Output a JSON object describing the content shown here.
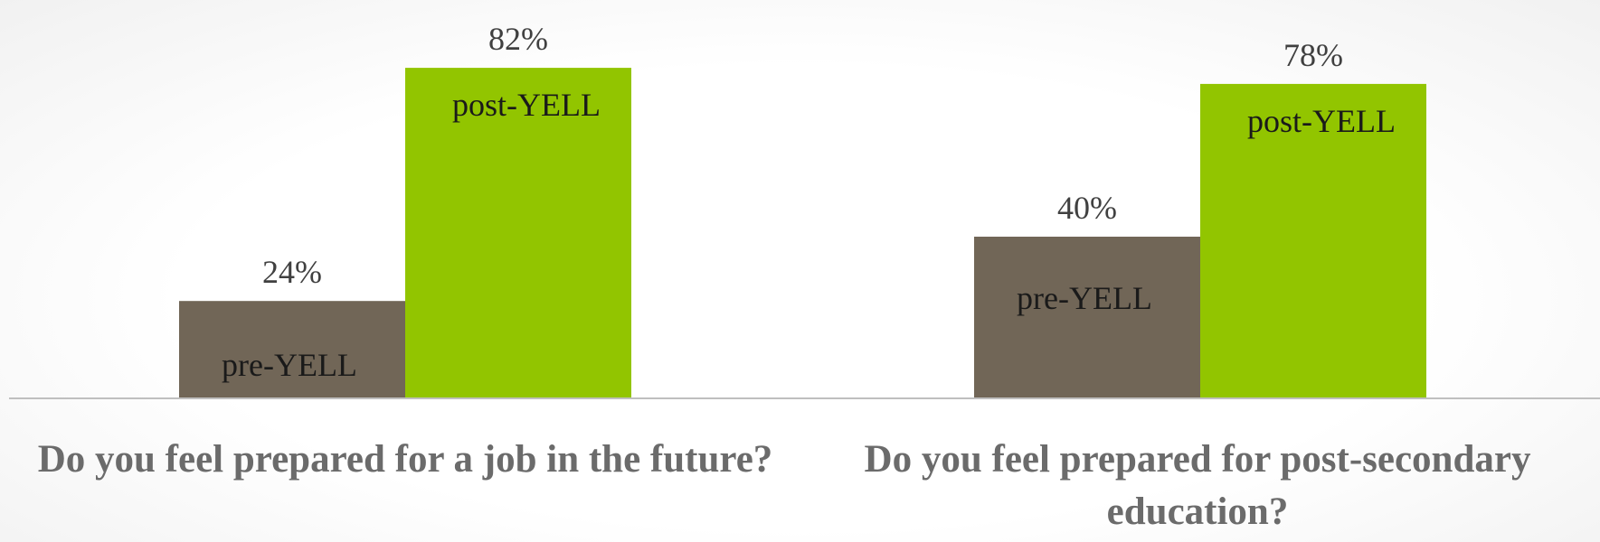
{
  "chart_data": {
    "type": "bar",
    "categories": [
      "Do you feel prepared for a job in the future?",
      "Do you feel prepared for post-secondary education?"
    ],
    "series": [
      {
        "name": "pre-YELL",
        "values": [
          24,
          40
        ]
      },
      {
        "name": "post-YELL",
        "values": [
          82,
          78
        ]
      }
    ],
    "value_labels": [
      [
        "24%",
        "40%"
      ],
      [
        "82%",
        "78%"
      ]
    ],
    "title": "",
    "xlabel": "",
    "ylabel": "",
    "ylim": [
      0,
      100
    ],
    "grid": false,
    "legend": "none (series names printed inside bars)",
    "colors": {
      "pre-YELL": "#716657",
      "post-YELL": "#92c500",
      "axis": "#bfbfbf",
      "category_text": "#6b6b6b"
    }
  }
}
